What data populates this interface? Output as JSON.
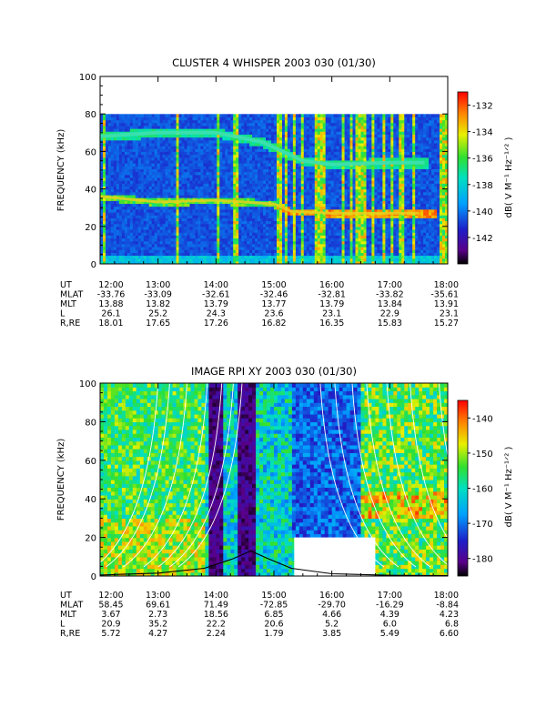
{
  "chart_data": [
    {
      "type": "heatmap",
      "title": "CLUSTER 4 WHISPER 2003 030 (01/30)",
      "ylabel": "FREQUENCY (kHz)",
      "ylim": [
        0,
        100
      ],
      "yticks": [
        "0",
        "20",
        "40",
        "60",
        "80",
        "100"
      ],
      "x_time_range": [
        "12:00",
        "18:00"
      ],
      "x_ticks": [
        "12:00",
        "13:00",
        "14:00",
        "15:00",
        "16:00",
        "17:00",
        "18:00"
      ],
      "data_freq_max": 80,
      "colorbar": {
        "label": "dB( V M⁻¹ Hz⁻¹ᐟ² )",
        "ticks": [
          "-132",
          "-134",
          "-136",
          "-138",
          "-140",
          "-142"
        ],
        "range": [
          -144,
          -131
        ]
      },
      "features": {
        "upper_band_khz": [
          [
            12.0,
            68
          ],
          [
            13.0,
            70
          ],
          [
            14.0,
            70
          ],
          [
            14.8,
            65
          ],
          [
            15.5,
            55
          ],
          [
            16.0,
            53
          ],
          [
            17.0,
            54
          ],
          [
            17.6,
            54
          ]
        ],
        "lower_band_khz": [
          [
            12.0,
            36
          ],
          [
            13.0,
            33
          ],
          [
            14.0,
            34
          ],
          [
            15.0,
            32
          ],
          [
            15.3,
            28
          ],
          [
            16.0,
            27
          ],
          [
            17.0,
            27
          ],
          [
            17.5,
            27
          ]
        ],
        "bursts_ut": [
          12.08,
          13.35,
          14.05,
          14.35,
          15.1,
          15.2,
          15.35,
          15.5,
          15.75,
          15.85,
          16.2,
          16.35,
          16.45,
          16.55,
          16.7,
          16.9,
          17.05,
          17.2,
          17.4,
          17.9,
          17.95
        ]
      },
      "ephemeris": {
        "rows": [
          {
            "label": "UT",
            "values": [
              "12:00",
              "13:00",
              "14:00",
              "15:00",
              "16:00",
              "17:00",
              "18:00"
            ]
          },
          {
            "label": "MLAT",
            "values": [
              "-33.76",
              "-33.09",
              "-32.61",
              "-32.46",
              "-32.81",
              "-33.82",
              "-35.61"
            ]
          },
          {
            "label": "MLT",
            "values": [
              "13.88",
              "13.82",
              "13.79",
              "13.77",
              "13.79",
              "13.84",
              "13.91"
            ]
          },
          {
            "label": "L",
            "values": [
              "26.1",
              "25.2",
              "24.3",
              "23.6",
              "23.1",
              "22.9",
              "23.1"
            ]
          },
          {
            "label": "R,RE",
            "values": [
              "18.01",
              "17.65",
              "17.26",
              "16.82",
              "16.35",
              "15.83",
              "15.27"
            ]
          }
        ]
      }
    },
    {
      "type": "heatmap",
      "title": "IMAGE RPI XY 2003 030 (01/30)",
      "ylabel": "FREQUENCY (kHz)",
      "ylim": [
        0,
        100
      ],
      "yticks": [
        "0",
        "20",
        "40",
        "60",
        "80",
        "100"
      ],
      "x_time_range": [
        "12:00",
        "18:00"
      ],
      "x_ticks": [
        "12:00",
        "13:00",
        "14:00",
        "15:00",
        "16:00",
        "17:00",
        "18:00"
      ],
      "colorbar": {
        "label": "dB( V M⁻¹ Hz⁻¹ᐟ² )",
        "ticks": [
          "-140",
          "-150",
          "-160",
          "-170",
          "-180"
        ],
        "range": [
          -185,
          -135
        ]
      },
      "features": {
        "no_data_box": {
          "ut": [
            15.35,
            16.75
          ],
          "khz": [
            0,
            20
          ]
        },
        "dark_bands_ut": [
          [
            13.85,
            14.15
          ],
          [
            14.35,
            14.7
          ]
        ],
        "plasma_freq_curve_khz": [
          [
            12.0,
            0.5
          ],
          [
            13.0,
            1.5
          ],
          [
            13.8,
            4
          ],
          [
            14.3,
            9
          ],
          [
            14.6,
            13
          ],
          [
            14.9,
            9
          ],
          [
            15.3,
            4
          ],
          [
            16.0,
            1.2
          ],
          [
            17.0,
            0.4
          ],
          [
            18.0,
            0.2
          ]
        ],
        "white_curve_peaks_ut": [
          13.0,
          13.2,
          13.5,
          13.85,
          14.1,
          14.3,
          14.45,
          15.8,
          16.05,
          16.35,
          16.6,
          16.95,
          17.35,
          17.85
        ]
      },
      "ephemeris": {
        "rows": [
          {
            "label": "UT",
            "values": [
              "12:00",
              "13:00",
              "14:00",
              "15:00",
              "16:00",
              "17:00",
              "18:00"
            ]
          },
          {
            "label": "MLAT",
            "values": [
              "58.45",
              "69.61",
              "71.49",
              "-72.85",
              "-29.70",
              "-16.29",
              "-8.84"
            ]
          },
          {
            "label": "MLT",
            "values": [
              "3.67",
              "2.73",
              "18.56",
              "6.85",
              "4.66",
              "4.39",
              "4.23"
            ]
          },
          {
            "label": "L",
            "values": [
              "20.9",
              "35.2",
              "22.2",
              "20.6",
              "5.2",
              "6.0",
              "6.8"
            ]
          },
          {
            "label": "R,RE",
            "values": [
              "5.72",
              "4.27",
              "2.24",
              "1.79",
              "3.85",
              "5.49",
              "6.60"
            ]
          }
        ]
      }
    }
  ]
}
